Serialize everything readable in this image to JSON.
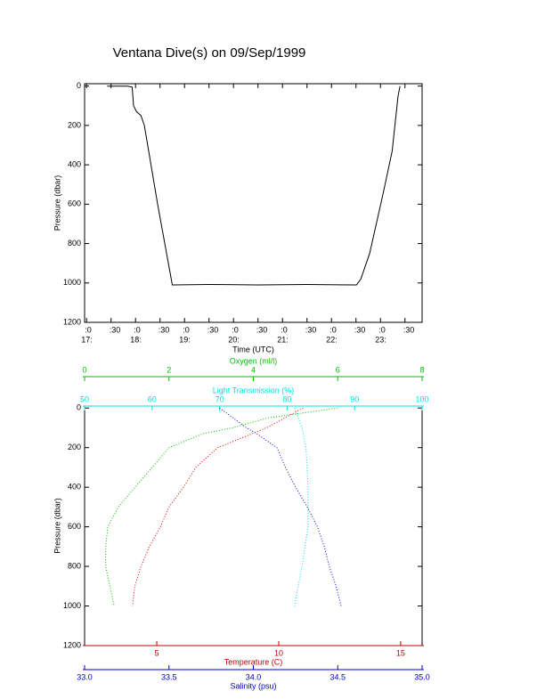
{
  "chart_data": [
    {
      "type": "line",
      "title": "Ventana Dive(s) on 09/Sep/1999",
      "xlabel": "Time (UTC)",
      "ylabel": "Pressure (dbar)",
      "xlim": [
        16.96,
        23.85
      ],
      "ylim": [
        1200,
        -12
      ],
      "xticks": [
        {
          "value": 17,
          "label": ":0",
          "label2": "17:"
        },
        {
          "value": 17.5,
          "label": ":30"
        },
        {
          "value": 18,
          "label": ":0",
          "label2": "18:"
        },
        {
          "value": 18.5,
          "label": ":30"
        },
        {
          "value": 19,
          "label": ":0",
          "label2": "19:"
        },
        {
          "value": 19.5,
          "label": ":30"
        },
        {
          "value": 20,
          "label": ":0",
          "label2": "20:"
        },
        {
          "value": 20.5,
          "label": ":30"
        },
        {
          "value": 21,
          "label": ":0",
          "label2": "21:"
        },
        {
          "value": 21.5,
          "label": ":30"
        },
        {
          "value": 22,
          "label": ":0",
          "label2": "22:"
        },
        {
          "value": 22.5,
          "label": ":30"
        },
        {
          "value": 23,
          "label": ":0",
          "label2": "23:"
        },
        {
          "value": 23.5,
          "label": ":30"
        }
      ],
      "yticks": [
        0,
        200,
        400,
        600,
        800,
        1000,
        1200
      ],
      "series": [
        {
          "color": "#000000",
          "x": [
            17.42,
            17.84,
            17.93,
            17.96,
            18.02,
            18.11,
            18.18,
            18.45,
            18.75,
            19.5,
            20.5,
            21.5,
            22.51,
            22.6,
            22.78,
            23.05,
            23.24,
            23.36,
            23.4
          ],
          "values": [
            0,
            0,
            5,
            100,
            130,
            150,
            200,
            600,
            1010,
            1008,
            1010,
            1008,
            1010,
            980,
            850,
            550,
            330,
            50,
            0
          ]
        }
      ]
    },
    {
      "type": "profile",
      "ylabel": "Pressure (dbar)",
      "ylim": [
        1200,
        -10
      ],
      "yticks": [
        0,
        200,
        400,
        600,
        800,
        1000,
        1200
      ],
      "x_axes": [
        {
          "label": "Oxygen (ml/l)",
          "color": "#00c000",
          "position": "top",
          "xlim": [
            0,
            8
          ],
          "xticks": [
            0,
            2,
            4,
            6,
            8
          ]
        },
        {
          "label": "Light Transmission (%)",
          "color": "#00e0e0",
          "position": "top",
          "xlim": [
            50,
            100
          ],
          "xticks": [
            50,
            60,
            70,
            80,
            90,
            100
          ]
        },
        {
          "label": "Temperature (C)",
          "color": "#c00000",
          "position": "bottom",
          "xlim": [
            2.04,
            15.88
          ],
          "xticks": [
            5,
            10,
            15
          ]
        },
        {
          "label": "Salinity (psu)",
          "color": "#0000c0",
          "position": "bottom",
          "xlim": [
            33,
            35
          ],
          "xticks": [
            {
              "value": 33,
              "label": "33.0"
            },
            {
              "value": 33.5,
              "label": "33.5"
            },
            {
              "value": 34,
              "label": "34.0"
            },
            {
              "value": 34.5,
              "label": "34.5"
            },
            {
              "value": 35,
              "label": "35.0"
            }
          ]
        }
      ],
      "series": [
        {
          "axis": 0,
          "color": "#00c000",
          "x": [
            6.0,
            4.35,
            3.5,
            2.8,
            2.0,
            1.6,
            1.2,
            0.8,
            0.55,
            0.5,
            0.5,
            0.6,
            0.7
          ],
          "y": [
            0,
            50,
            100,
            130,
            200,
            300,
            400,
            500,
            600,
            700,
            800,
            900,
            1000
          ]
        },
        {
          "axis": 1,
          "color": "#00e0e0",
          "x": [
            81.1,
            82.2,
            82.8,
            83.1,
            83.1,
            82.2,
            81.1
          ],
          "y": [
            0,
            100,
            200,
            400,
            600,
            800,
            1000
          ]
        },
        {
          "axis": 2,
          "color": "#e00000",
          "x": [
            11.0,
            9.5,
            7.5,
            6.6,
            6.1,
            5.5,
            5.15,
            4.7,
            4.35,
            4.1,
            4.0
          ],
          "y": [
            0,
            100,
            200,
            300,
            400,
            500,
            600,
            700,
            800,
            900,
            1000
          ]
        },
        {
          "axis": 3,
          "color": "#0000e0",
          "x": [
            33.8,
            33.96,
            34.02,
            34.14,
            34.19,
            34.25,
            34.32,
            34.38,
            34.42,
            34.45,
            34.49,
            34.52
          ],
          "y": [
            0,
            100,
            130,
            200,
            300,
            400,
            500,
            600,
            700,
            800,
            900,
            1000
          ]
        }
      ]
    }
  ]
}
